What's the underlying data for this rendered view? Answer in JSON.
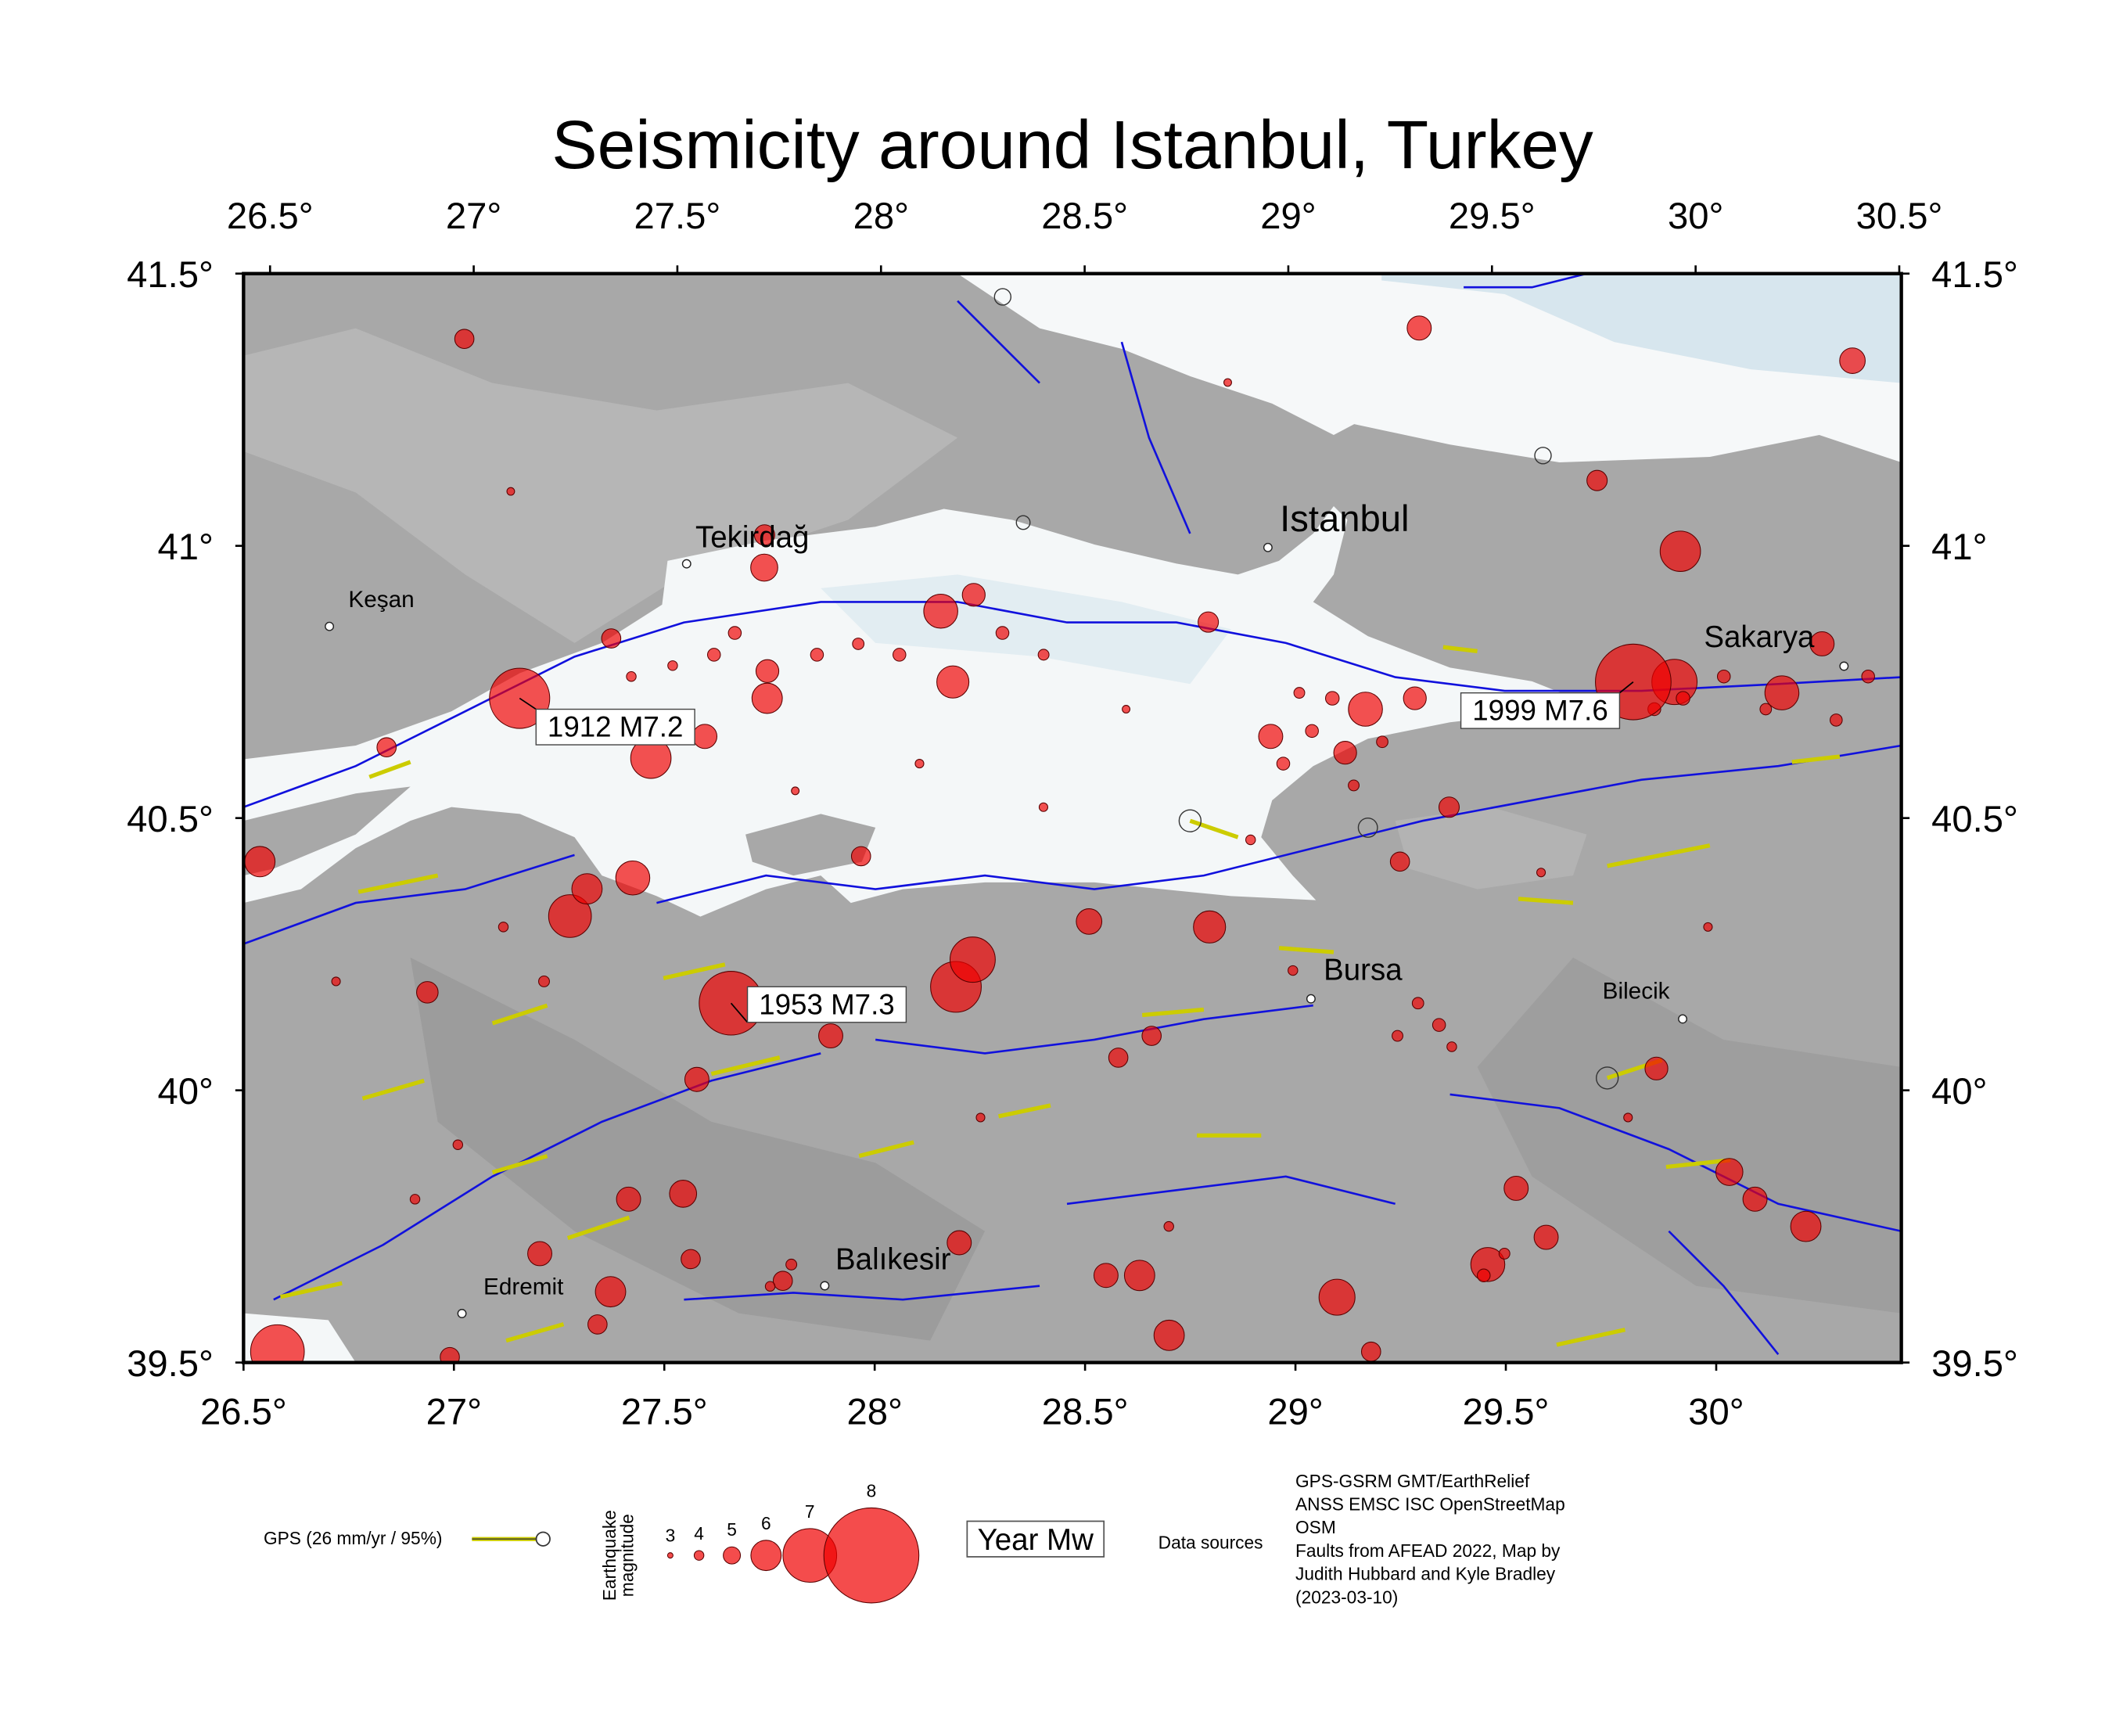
{
  "map": {
    "title": "Seismicity around Istanbul, Turkey",
    "latlim": [
      39.5,
      41.5
    ],
    "lonlim": [
      26.5,
      30.44
    ],
    "lon_ticks": [
      {
        "value": 26.5,
        "label": "26.5°"
      },
      {
        "value": 27,
        "label": "27°"
      },
      {
        "value": 27.5,
        "label": "27.5°"
      },
      {
        "value": 28,
        "label": "28°"
      },
      {
        "value": 28.5,
        "label": "28.5°"
      },
      {
        "value": 29,
        "label": "29°"
      },
      {
        "value": 29.5,
        "label": "29.5°"
      },
      {
        "value": 30,
        "label": "30°"
      },
      {
        "value": 30.5,
        "label": "30.5°"
      }
    ],
    "lat_ticks": [
      {
        "value": 39.5,
        "label": "39.5°"
      },
      {
        "value": 40,
        "label": "40°"
      },
      {
        "value": 40.5,
        "label": "40.5°"
      },
      {
        "value": 41,
        "label": "41°"
      },
      {
        "value": 41.5,
        "label": "41.5°"
      }
    ],
    "places": [
      {
        "name": "Tekirdağ",
        "lon": 27.531,
        "lat": 40.967
      },
      {
        "name": "Keşan",
        "lon": 26.665,
        "lat": 40.852
      },
      {
        "name": "Istanbul",
        "lon": 28.946,
        "lat": 40.997
      },
      {
        "name": "Sakarya",
        "lon": 30.342,
        "lat": 40.779
      },
      {
        "name": "Bursa",
        "lon": 29.043,
        "lat": 40.168
      },
      {
        "name": "Bilecik",
        "lon": 29.935,
        "lat": 40.131
      },
      {
        "name": "Edremit",
        "lon": 27.017,
        "lat": 39.59
      },
      {
        "name": "Balıkesir",
        "lon": 27.88,
        "lat": 39.641
      }
    ],
    "events": [
      {
        "label": "1912 M7.2",
        "lon": 27.13,
        "lat": 40.72,
        "mag": 7.2
      },
      {
        "label": "1999 M7.6",
        "lon": 29.83,
        "lat": 40.75,
        "mag": 7.6
      },
      {
        "label": "1953 M7.3",
        "lon": 27.65,
        "lat": 40.16,
        "mag": 7.3
      }
    ],
    "earthquakes": {
      "lon": [
        26.98,
        29.32,
        30.38,
        29.95,
        29.75,
        27.72,
        27.72,
        28.15,
        28.23,
        28.18,
        27.73,
        27.73,
        27.35,
        27.45,
        27.58,
        27.41,
        27.26,
        27.3,
        26.51,
        28.8,
        28.51,
        28.23,
        28.19,
        27.89,
        27.57,
        28.8,
        28.95,
        29.18,
        29.13,
        29.38,
        29.3,
        29.93,
        30.19,
        30.29,
        29.87,
        30.04,
        30.1,
        30.22,
        29.53,
        29.6,
        29.46,
        29.1,
        29.18,
        28.7,
        28.63,
        28.55,
        28.2,
        27.78,
        27.54,
        27.41,
        27.37,
        27.2,
        27.34,
        27.56,
        26.58,
        26.99,
        28.58,
        28.66,
        26.92,
        29.26,
        27.96,
        26.81,
        27.6,
        27.85,
        27.95,
        28.05,
        28.3,
        28.4,
        27.5,
        27.4,
        27.65,
        29.05,
        29.1,
        29.22,
        28.98,
        29.02,
        29.15,
        29.3,
        29.35,
        29.25,
        29.38,
        29.0,
        29.95,
        30.05,
        30.15,
        29.88,
        30.32,
        30.4,
        27.2,
        27.1,
        27.8,
        27.75,
        28.7,
        29.45,
        29.5,
        27.0,
        26.9,
        28.9,
        28.4,
        28.1,
        27.8,
        28.6,
        29.6,
        30.0,
        26.7,
        28.25,
        29.8,
        27.1,
        28.85
      ],
      "lat": [
        41.38,
        41.4,
        41.34,
        40.99,
        41.12,
        40.96,
        41.02,
        40.88,
        40.91,
        40.75,
        40.72,
        40.77,
        40.83,
        40.61,
        40.65,
        40.39,
        40.32,
        40.37,
        40.42,
        40.3,
        40.31,
        40.24,
        40.19,
        40.1,
        40.02,
        40.86,
        40.65,
        40.7,
        40.62,
        40.52,
        40.72,
        40.75,
        40.73,
        40.82,
        40.04,
        39.85,
        39.8,
        39.75,
        39.82,
        39.73,
        39.68,
        39.62,
        39.52,
        39.55,
        39.66,
        39.66,
        39.72,
        39.65,
        39.81,
        39.8,
        39.63,
        39.7,
        39.57,
        39.69,
        39.52,
        39.51,
        40.06,
        40.1,
        40.18,
        40.42,
        40.43,
        40.63,
        40.8,
        40.8,
        40.82,
        40.8,
        40.84,
        40.8,
        40.78,
        40.76,
        40.84,
        40.66,
        40.72,
        40.64,
        40.6,
        40.73,
        40.56,
        40.16,
        40.12,
        40.1,
        40.08,
        40.22,
        40.72,
        40.76,
        40.7,
        40.7,
        40.68,
        40.76,
        40.2,
        40.3,
        39.68,
        39.64,
        39.75,
        39.66,
        39.7,
        39.9,
        39.8,
        40.46,
        40.52,
        40.6,
        40.55,
        40.7,
        40.4,
        40.3,
        40.2,
        39.95,
        39.95,
        41.1,
        41.3
      ],
      "mag": [
        5.2,
        5.6,
        5.7,
        6.5,
        5.3,
        5.8,
        5.3,
        6.2,
        5.5,
        6.1,
        6.0,
        5.5,
        5.2,
        6.5,
        5.6,
        6.2,
        6.6,
        6.0,
        6.0,
        6.1,
        5.7,
        6.7,
        6.9,
        5.6,
        5.6,
        5.3,
        5.6,
        6.2,
        5.5,
        5.3,
        5.5,
        6.7,
        6.2,
        5.6,
        5.5,
        5.8,
        5.6,
        6.0,
        5.6,
        5.6,
        6.2,
        6.3,
        5.2,
        6.0,
        6.0,
        5.6,
        5.6,
        5.2,
        5.8,
        5.6,
        6.0,
        5.6,
        5.2,
        5.2,
        7.0,
        5.2,
        5.2,
        5.2,
        5.4,
        5.2,
        5.2,
        5.2,
        4.5,
        4.5,
        4.3,
        4.5,
        4.5,
        4.2,
        4,
        4,
        4.5,
        4.5,
        4.6,
        4.3,
        4.5,
        4.2,
        4.2,
        4.3,
        4.5,
        4.2,
        4.0,
        4.0,
        4.6,
        4.5,
        4.3,
        4.5,
        4.4,
        4.5,
        4.2,
        4.0,
        4.2,
        4.0,
        4.0,
        4.5,
        4.2,
        4.0,
        4.0,
        4.0,
        3.8,
        3.8,
        3.6,
        3.6,
        3.8,
        3.8,
        3.8,
        3.8,
        3.8,
        3.6,
        3.6
      ]
    },
    "legend": {
      "gps": "GPS (26 mm/yr / 95%)",
      "magnitude_title": [
        "Earthquake",
        "magnitude"
      ],
      "magnitudes": [
        3,
        4,
        5,
        6,
        7,
        8
      ],
      "label_box": "Year Mw",
      "data_sources_title": "Data sources",
      "data_sources": [
        "GPS-GSRM GMT/EarthRelief",
        "ANSS EMSC ISC OpenStreetMap",
        "OSM",
        "Faults from AFEAD 2022, Map by",
        "Judith Hubbard and Kyle Bradley",
        "(2023-03-10)"
      ]
    }
  }
}
